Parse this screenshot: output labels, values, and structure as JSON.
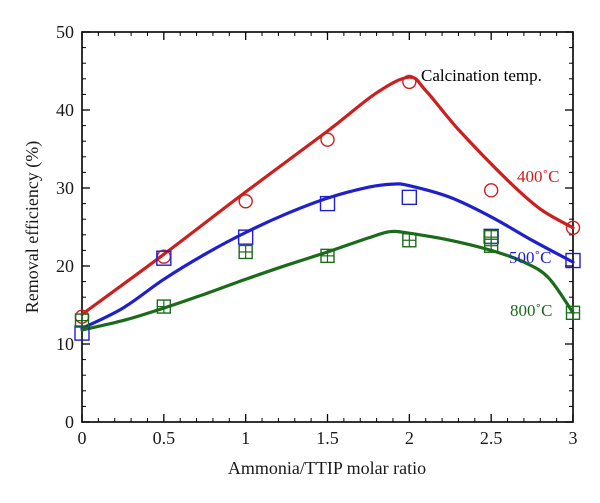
{
  "chart_data": {
    "type": "scatter",
    "title": "",
    "xlabel": "Ammonia/TTIP molar ratio",
    "ylabel": "Removal efficiency (%)",
    "xlim": [
      0,
      3
    ],
    "ylim": [
      0,
      50
    ],
    "xticks": [
      0,
      0.5,
      1,
      1.5,
      2,
      2.5,
      3
    ],
    "xtick_labels": [
      "0",
      "0.5",
      "1",
      "1.5",
      "2",
      "2.5",
      "3"
    ],
    "yticks": [
      0,
      10,
      20,
      30,
      40,
      50
    ],
    "ytick_labels": [
      "0",
      "10",
      "20",
      "30",
      "40",
      "50"
    ],
    "grid": false,
    "legend_title": "Calcination temp.",
    "series": [
      {
        "name": "400˚C",
        "color": "#cc1f1f",
        "marker": "circle",
        "points": [
          [
            0,
            13.5
          ],
          [
            0.5,
            21.2
          ],
          [
            1,
            28.3
          ],
          [
            1.5,
            36.2
          ],
          [
            2,
            43.6
          ],
          [
            2.5,
            29.7
          ],
          [
            3,
            24.9
          ]
        ],
        "fit": [
          [
            0,
            13.8
          ],
          [
            0.5,
            21.5
          ],
          [
            1,
            29.5
          ],
          [
            1.5,
            37.3
          ],
          [
            1.8,
            42.2
          ],
          [
            2,
            44.2
          ],
          [
            2.1,
            42.5
          ],
          [
            2.3,
            37.5
          ],
          [
            2.6,
            31.0
          ],
          [
            2.8,
            27.3
          ],
          [
            3,
            24.9
          ]
        ]
      },
      {
        "name": "500˚C",
        "color": "#1f1fcc",
        "marker": "square",
        "points": [
          [
            0,
            11.4
          ],
          [
            0.5,
            21.0
          ],
          [
            1,
            23.7
          ],
          [
            1.5,
            28.0
          ],
          [
            2,
            28.8
          ],
          [
            2.5,
            23.8
          ],
          [
            3,
            20.7
          ]
        ],
        "fit": [
          [
            0,
            12.0
          ],
          [
            0.25,
            14.6
          ],
          [
            0.5,
            18.3
          ],
          [
            0.75,
            21.5
          ],
          [
            1,
            24.3
          ],
          [
            1.25,
            26.7
          ],
          [
            1.5,
            28.7
          ],
          [
            1.75,
            30.1
          ],
          [
            1.9,
            30.5
          ],
          [
            2,
            30.3
          ],
          [
            2.25,
            28.8
          ],
          [
            2.5,
            26.3
          ],
          [
            2.75,
            23.3
          ],
          [
            3,
            20.5
          ]
        ]
      },
      {
        "name": "800˚C",
        "color": "#1a6b1a",
        "marker": "boxed-plus",
        "points": [
          [
            0,
            13.0
          ],
          [
            0.5,
            14.8
          ],
          [
            1,
            21.8
          ],
          [
            1.5,
            21.3
          ],
          [
            2,
            23.3
          ],
          [
            2.5,
            22.6
          ],
          [
            2.5,
            23.7
          ],
          [
            3,
            14.0
          ]
        ],
        "fit": [
          [
            0,
            11.8
          ],
          [
            0.25,
            13.0
          ],
          [
            0.5,
            14.6
          ],
          [
            0.75,
            16.4
          ],
          [
            1,
            18.3
          ],
          [
            1.25,
            20.1
          ],
          [
            1.5,
            21.8
          ],
          [
            1.75,
            23.6
          ],
          [
            1.88,
            24.4
          ],
          [
            2,
            24.2
          ],
          [
            2.25,
            23.3
          ],
          [
            2.5,
            22.0
          ],
          [
            2.7,
            20.5
          ],
          [
            2.85,
            18.5
          ],
          [
            3,
            14.0
          ]
        ]
      }
    ]
  }
}
